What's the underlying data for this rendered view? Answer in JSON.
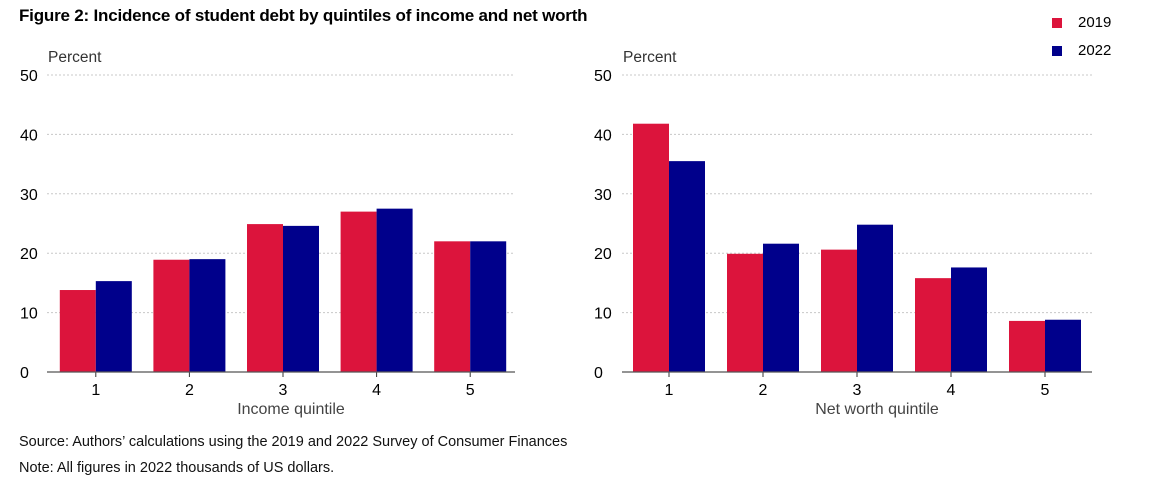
{
  "figure": {
    "title": "Figure 2: Incidence of student debt by quintiles of income and net worth",
    "source": "Source: Authors’ calculations using the 2019 and 2022 Survey of Consumer Finances",
    "note": "Note: All figures in 2022 thousands of US dollars."
  },
  "legend": [
    {
      "label": "2019",
      "color": "#dc143c"
    },
    {
      "label": "2022",
      "color": "#00008b"
    }
  ],
  "chart_data": [
    {
      "type": "bar",
      "title": "",
      "ylabel": "Percent",
      "xlabel": "Income quintile",
      "categories": [
        "1",
        "2",
        "3",
        "4",
        "5"
      ],
      "yticks": [
        0,
        10,
        20,
        30,
        40,
        50
      ],
      "ylim": [
        0,
        50
      ],
      "grid": true,
      "series": [
        {
          "name": "2019",
          "color": "#dc143c",
          "values": [
            13.8,
            18.9,
            24.9,
            27.0,
            22.0
          ]
        },
        {
          "name": "2022",
          "color": "#00008b",
          "values": [
            15.3,
            19.0,
            24.6,
            27.5,
            22.0
          ]
        }
      ]
    },
    {
      "type": "bar",
      "title": "",
      "ylabel": "Percent",
      "xlabel": "Net worth quintile",
      "categories": [
        "1",
        "2",
        "3",
        "4",
        "5"
      ],
      "yticks": [
        0,
        10,
        20,
        30,
        40,
        50
      ],
      "ylim": [
        0,
        50
      ],
      "grid": true,
      "series": [
        {
          "name": "2019",
          "color": "#dc143c",
          "values": [
            41.8,
            19.9,
            20.6,
            15.8,
            8.6
          ]
        },
        {
          "name": "2022",
          "color": "#00008b",
          "values": [
            35.5,
            21.6,
            24.8,
            17.6,
            8.8
          ]
        }
      ]
    }
  ]
}
